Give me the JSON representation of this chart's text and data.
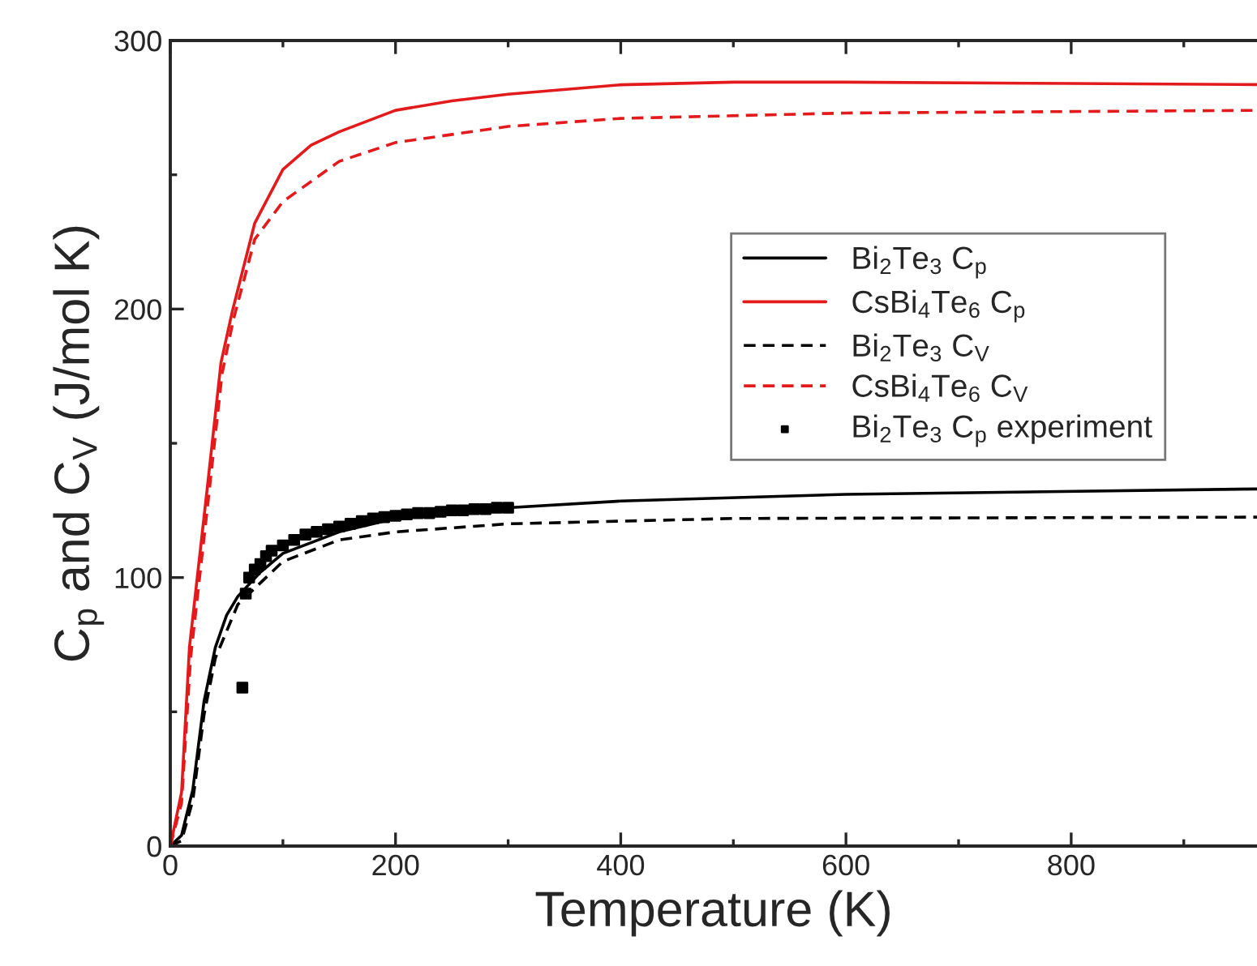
{
  "chart_data": {
    "type": "line",
    "xlabel": "Temperature (K)",
    "ylabel": "C$_{p}$ and C$_{V}$ (J/mol K)",
    "xlim": [
      0,
      965
    ],
    "ylim": [
      0,
      300
    ],
    "xticks": [
      0,
      {
        "value": 100,
        "label": null
      },
      200,
      {
        "value": 300,
        "label": null
      },
      400,
      {
        "value": 500,
        "label": null
      },
      600,
      {
        "value": 700,
        "label": null
      },
      800,
      {
        "value": 900,
        "label": null
      }
    ],
    "yticks": [
      0,
      {
        "value": 50,
        "label": null
      },
      100,
      {
        "value": 150,
        "label": null
      },
      200,
      {
        "value": 250,
        "label": null
      },
      300
    ],
    "grid": false,
    "legend": "right",
    "series": [
      {
        "name": "Bi$_{2}$Te$_{3}$ C$_{p}$",
        "line_style": "solid",
        "color": "#000000",
        "x": [
          0,
          10,
          20,
          30,
          40,
          50,
          60,
          80,
          100,
          150,
          200,
          300,
          400,
          600,
          965
        ],
        "values": [
          0,
          4,
          21,
          54,
          74,
          86,
          93,
          102,
          109,
          117,
          122,
          126,
          128.5,
          131,
          133
        ]
      },
      {
        "name": "CsBi$_{4}$Te$_{6}$ C$_{p}$",
        "line_style": "solid",
        "color": "#e31a1c",
        "x": [
          0,
          10,
          17,
          33,
          45,
          55,
          75,
          100,
          125,
          150,
          200,
          250,
          300,
          400,
          500,
          600,
          800,
          965
        ],
        "values": [
          0,
          20,
          74,
          134,
          180,
          199,
          232,
          252,
          261,
          266,
          274,
          277.5,
          280,
          283.5,
          284.5,
          284.5,
          284,
          283.6
        ]
      },
      {
        "name": "Bi$_{2}$Te$_{3}$ C$_{V}$",
        "line_style": "dashed",
        "color": "#000000",
        "x": [
          0,
          10,
          20,
          30,
          40,
          60,
          100,
          150,
          200,
          300,
          500,
          965
        ],
        "values": [
          0,
          2,
          17,
          49,
          70,
          90,
          106,
          114,
          117,
          120,
          122,
          122.5
        ]
      },
      {
        "name": "CsBi$_{4}$Te$_{6}$ C$_{V}$",
        "line_style": "dashed",
        "color": "#e31a1c",
        "x": [
          0,
          10,
          18,
          34,
          46,
          56,
          75,
          100,
          150,
          200,
          300,
          400,
          600,
          965
        ],
        "values": [
          0,
          16,
          70,
          130,
          176,
          196,
          226,
          240,
          255,
          262,
          268,
          271,
          273,
          274
        ]
      },
      {
        "name": "Bi$_{2}$Te$_{3}$ C$_{p}$ experiment",
        "type": "scatter",
        "marker": "square",
        "color": "#000000",
        "x": [
          64,
          67,
          70,
          75,
          80,
          85,
          90,
          100,
          110,
          120,
          130,
          140,
          150,
          160,
          170,
          180,
          190,
          200,
          210,
          220,
          230,
          240,
          250,
          260,
          270,
          280,
          290,
          300
        ],
        "values": [
          59,
          94,
          100,
          103,
          105,
          108,
          110,
          112,
          114,
          116,
          117,
          118,
          119,
          120,
          121,
          122,
          122.5,
          123,
          123.5,
          124,
          124,
          124.5,
          125,
          125,
          125.5,
          125.5,
          126,
          126
        ]
      }
    ]
  }
}
